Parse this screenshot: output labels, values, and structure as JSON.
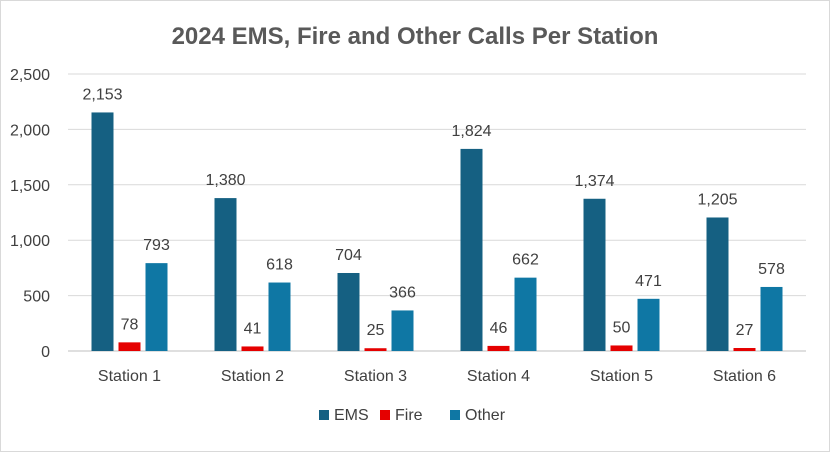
{
  "chart_data": {
    "type": "bar",
    "title": "2024 EMS, Fire and Other Calls Per Station",
    "categories": [
      "Station 1",
      "Station 2",
      "Station 3",
      "Station 4",
      "Station 5",
      "Station 6"
    ],
    "series": [
      {
        "name": "EMS",
        "color": "#156082",
        "values": [
          2153,
          1380,
          704,
          1824,
          1374,
          1205
        ],
        "labels": [
          "2,153",
          "1,380",
          "704",
          "1,824",
          "1,374",
          "1,205"
        ]
      },
      {
        "name": "Fire",
        "color": "#e50000",
        "values": [
          78,
          41,
          25,
          46,
          50,
          27
        ],
        "labels": [
          "78",
          "41",
          "25",
          "46",
          "50",
          "27"
        ]
      },
      {
        "name": "Other",
        "color": "#0f77a4",
        "values": [
          793,
          618,
          366,
          662,
          471,
          578
        ],
        "labels": [
          "793",
          "618",
          "366",
          "662",
          "471",
          "578"
        ]
      }
    ],
    "ylim": [
      0,
      2500
    ],
    "yticks": [
      0,
      500,
      1000,
      1500,
      2000,
      2500
    ],
    "ytick_labels": [
      "0",
      "500",
      "1,000",
      "1,500",
      "2,000",
      "2,500"
    ],
    "grid": true,
    "legend_position": "bottom"
  }
}
